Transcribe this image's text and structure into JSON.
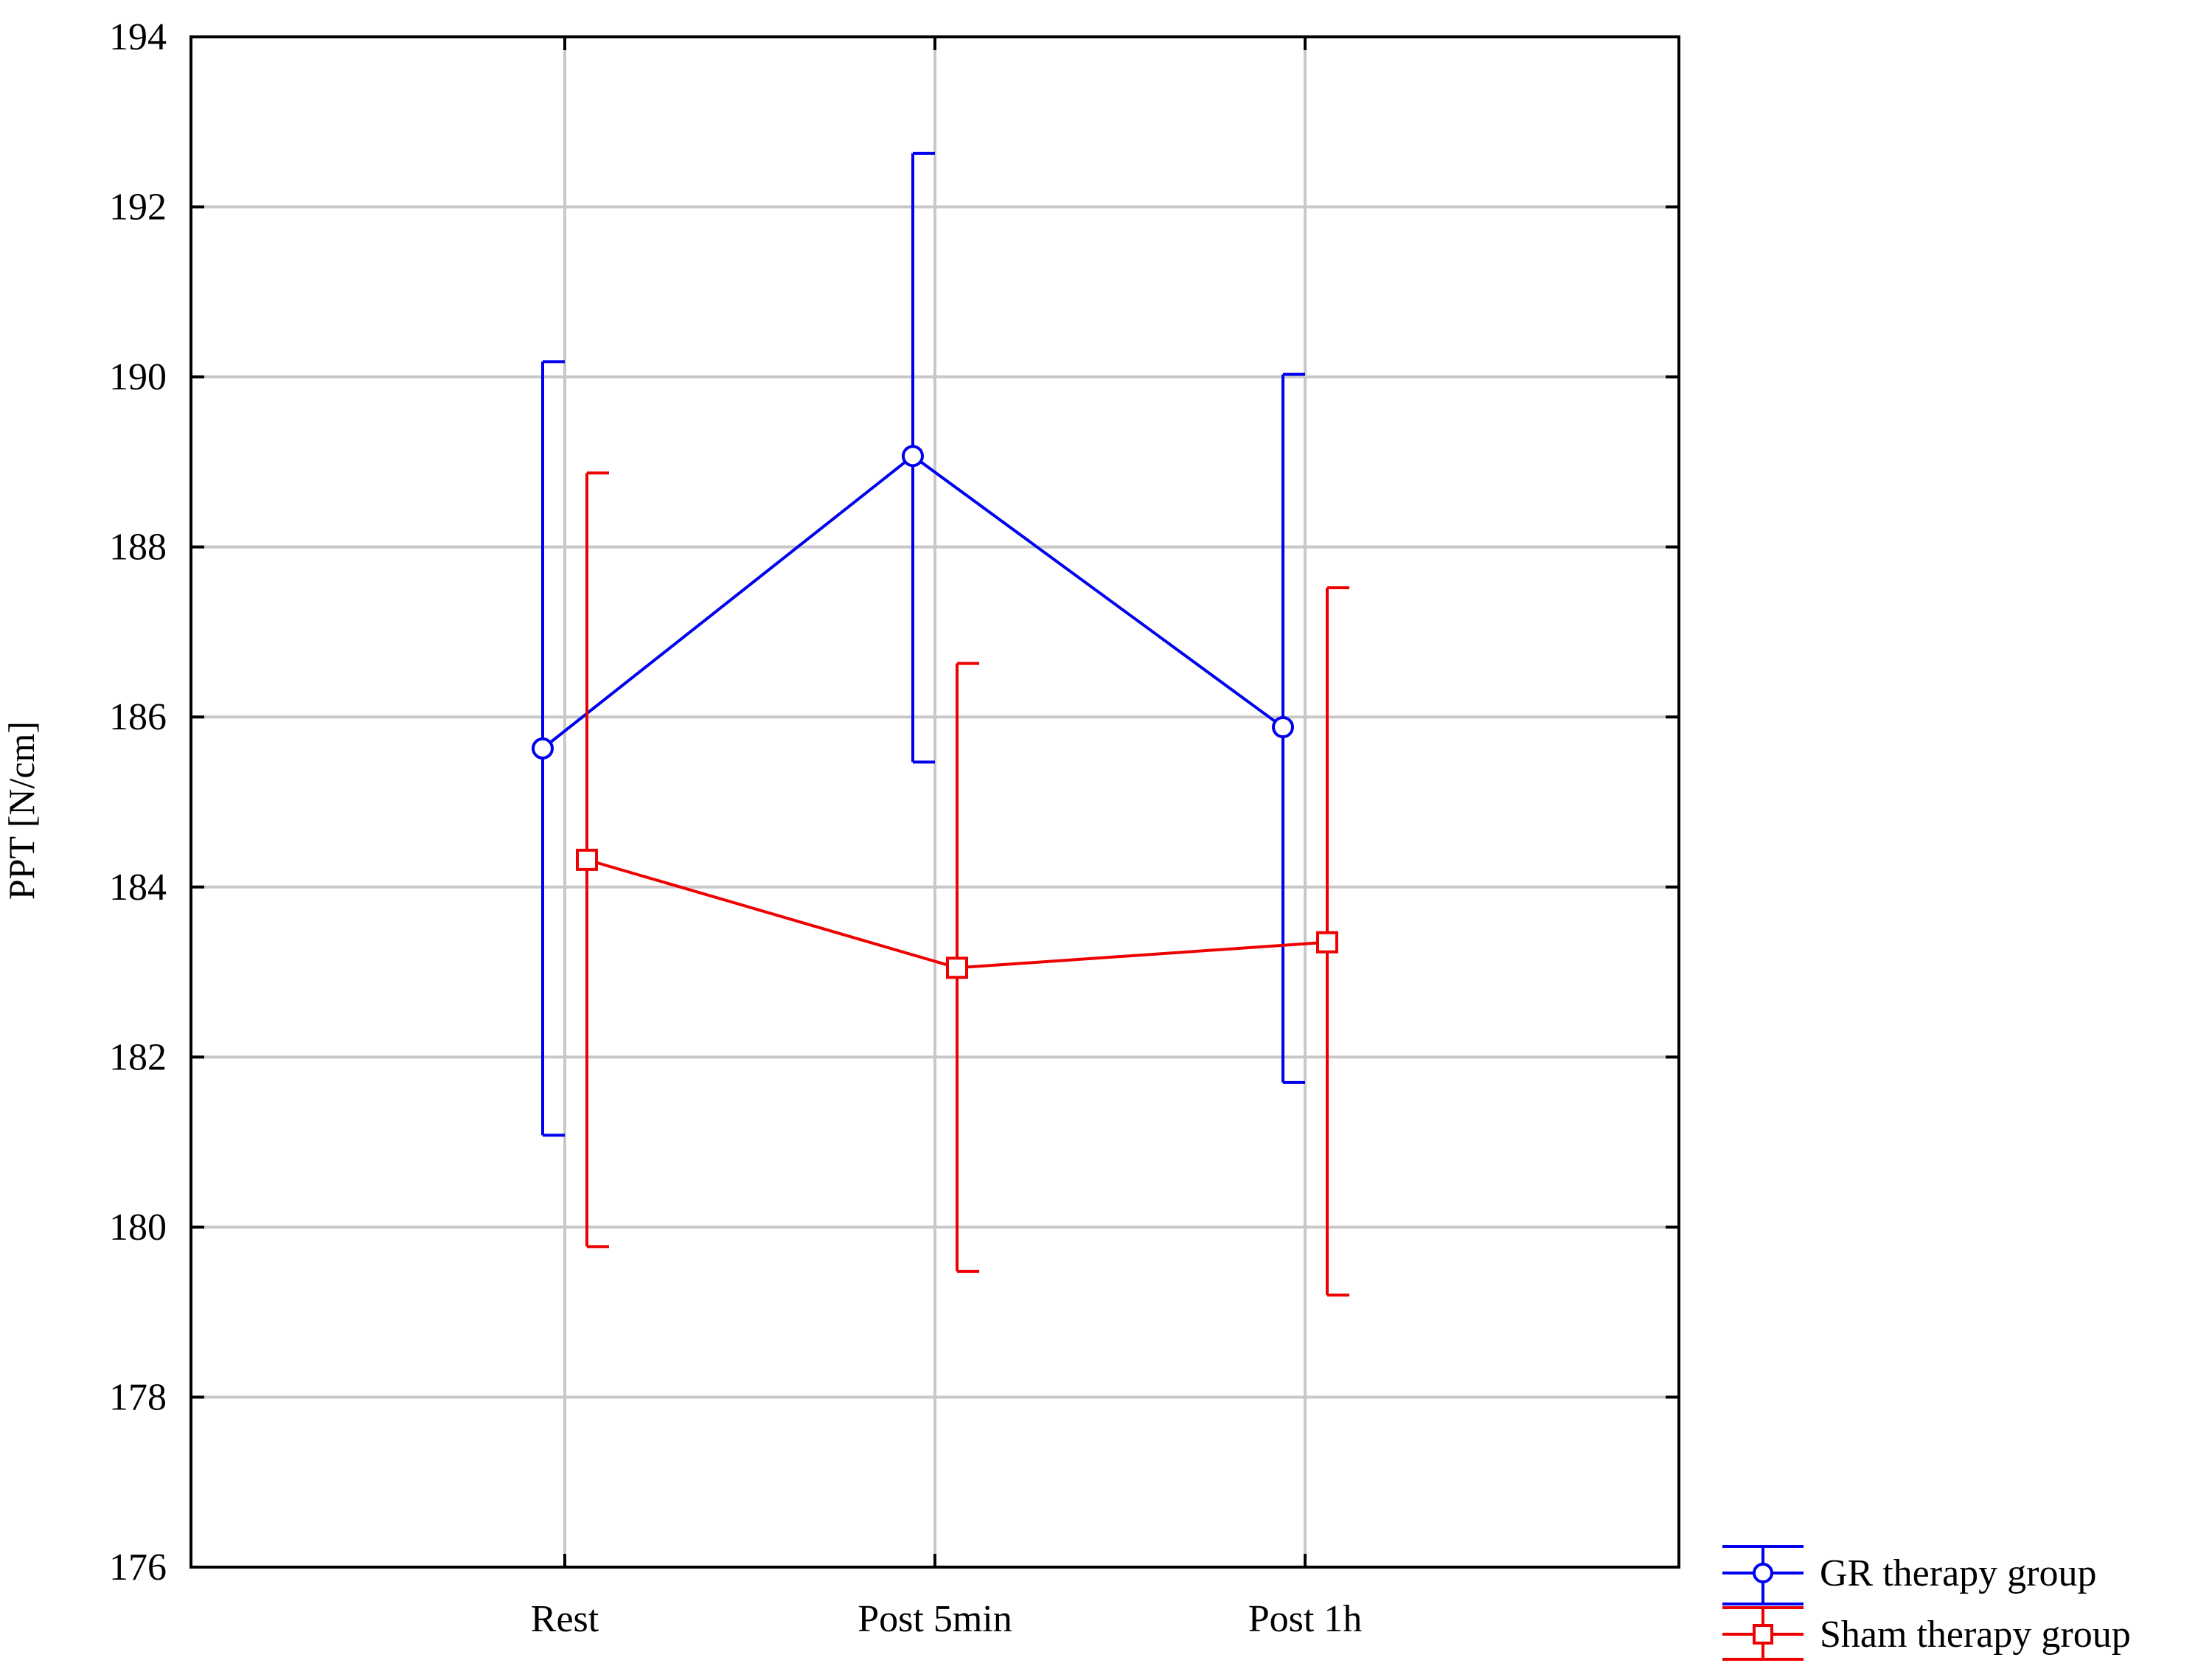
{
  "chart_data": {
    "type": "line",
    "title": "",
    "xlabel": "",
    "ylabel": "PPT [N/cm]",
    "categories": [
      "Rest",
      "Post 5min",
      "Post 1h"
    ],
    "ylim": [
      176,
      194
    ],
    "yticks": [
      "176",
      "178",
      "180",
      "182",
      "184",
      "186",
      "188",
      "190",
      "192",
      "194"
    ],
    "grid": true,
    "legend_position": "bottom-right, outside plot",
    "series": [
      {
        "name": "GR therapy group",
        "color": "#0000ee",
        "marker": "circle",
        "values": [
          185.63,
          189.07,
          185.88
        ],
        "err_low": [
          181.08,
          185.47,
          181.7
        ],
        "err_high": [
          190.18,
          192.63,
          190.03
        ]
      },
      {
        "name": "Sham therapy group",
        "color": "#ee0000",
        "marker": "square",
        "values": [
          184.32,
          183.05,
          183.35
        ],
        "err_low": [
          179.77,
          179.48,
          179.2
        ],
        "err_high": [
          188.87,
          186.63,
          187.52
        ]
      }
    ]
  }
}
